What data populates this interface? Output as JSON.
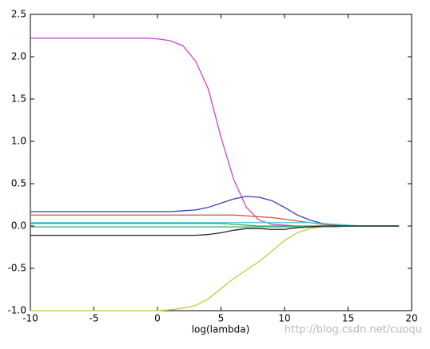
{
  "chart_data": {
    "type": "line",
    "x_label": "log(lambda)",
    "watermark": "http://blog.csdn.net/cuoqu",
    "x": [
      -10,
      -9,
      -8,
      -7,
      -6,
      -5,
      -4,
      -3,
      -2,
      -1,
      0,
      1,
      2,
      3,
      4,
      5,
      6,
      7,
      8,
      9,
      10,
      11,
      12,
      13,
      14,
      15,
      16,
      17,
      18,
      19
    ],
    "series": [
      {
        "color": "#cc44cc",
        "values": [
          2.22,
          2.22,
          2.22,
          2.22,
          2.22,
          2.22,
          2.22,
          2.22,
          2.22,
          2.22,
          2.21,
          2.19,
          2.13,
          1.95,
          1.62,
          1.05,
          0.55,
          0.22,
          0.07,
          0.02,
          0.01,
          0,
          0,
          0,
          0,
          0,
          0,
          0,
          0,
          0
        ]
      },
      {
        "color": "#c8c83c",
        "values": [
          -1,
          -1,
          -1,
          -1,
          -1,
          -1,
          -1,
          -1,
          -1,
          -1,
          -1,
          -0.99,
          -0.97,
          -0.94,
          -0.86,
          -0.74,
          -0.62,
          -0.52,
          -0.42,
          -0.3,
          -0.17,
          -0.08,
          -0.03,
          -0.01,
          0,
          0,
          0,
          0,
          0,
          0
        ]
      },
      {
        "color": "#3a3ac8",
        "values": [
          0.17,
          0.17,
          0.17,
          0.17,
          0.17,
          0.17,
          0.17,
          0.17,
          0.17,
          0.17,
          0.17,
          0.17,
          0.18,
          0.19,
          0.22,
          0.27,
          0.32,
          0.35,
          0.34,
          0.3,
          0.22,
          0.13,
          0.07,
          0.03,
          0.01,
          0,
          0,
          0,
          0,
          0
        ]
      },
      {
        "color": "#d0503a",
        "values": [
          0.13,
          0.13,
          0.13,
          0.13,
          0.13,
          0.13,
          0.13,
          0.13,
          0.13,
          0.13,
          0.13,
          0.13,
          0.13,
          0.13,
          0.13,
          0.13,
          0.13,
          0.12,
          0.11,
          0.1,
          0.08,
          0.06,
          0.04,
          0.02,
          0.01,
          0,
          0,
          0,
          0,
          0
        ]
      },
      {
        "color": "#40c8e0",
        "values": [
          0.04,
          0.04,
          0.04,
          0.04,
          0.04,
          0.04,
          0.04,
          0.04,
          0.04,
          0.04,
          0.04,
          0.04,
          0.04,
          0.04,
          0.04,
          0.04,
          0.04,
          0.04,
          0.04,
          0.04,
          0.04,
          0.04,
          0.04,
          0.03,
          0.02,
          0.01,
          0,
          0,
          0,
          0
        ]
      },
      {
        "color": "#3cb43c",
        "values": [
          0.03,
          0.03,
          0.03,
          0.03,
          0.03,
          0.03,
          0.03,
          0.03,
          0.03,
          0.03,
          0.03,
          0.03,
          0.03,
          0.03,
          0.03,
          0.03,
          0.02,
          0.01,
          0,
          0,
          0,
          0,
          0,
          0,
          0,
          0,
          0,
          0,
          0,
          0
        ]
      },
      {
        "color": "#3cb4a0",
        "values": [
          -0.01,
          -0.01,
          -0.01,
          -0.01,
          -0.01,
          -0.01,
          -0.01,
          -0.01,
          -0.01,
          -0.01,
          -0.01,
          -0.01,
          -0.01,
          -0.01,
          -0.01,
          -0.01,
          -0.01,
          -0.01,
          -0.01,
          -0.01,
          -0.01,
          -0.01,
          -0.01,
          -0.01,
          -0.01,
          0,
          0,
          0,
          0,
          0
        ]
      },
      {
        "color": "#222222",
        "values": [
          -0.11,
          -0.11,
          -0.11,
          -0.11,
          -0.11,
          -0.11,
          -0.11,
          -0.11,
          -0.11,
          -0.11,
          -0.11,
          -0.11,
          -0.11,
          -0.11,
          -0.1,
          -0.08,
          -0.05,
          -0.03,
          -0.03,
          -0.04,
          -0.04,
          -0.02,
          -0.01,
          0,
          0,
          0,
          0,
          0,
          0,
          0
        ]
      }
    ],
    "xlim": [
      -10,
      20
    ],
    "xticks": [
      -10,
      -5,
      0,
      5,
      10,
      15,
      20
    ],
    "ylim": [
      -1,
      2.5
    ],
    "yticks": [
      {
        "value": -1,
        "label": "-1.0"
      },
      -0.5,
      {
        "value": 0,
        "label": "0.0"
      },
      0.5,
      {
        "value": 1,
        "label": "1.0"
      },
      1.5,
      {
        "value": 2,
        "label": "2.0"
      },
      2.5
    ],
    "grid": false
  }
}
